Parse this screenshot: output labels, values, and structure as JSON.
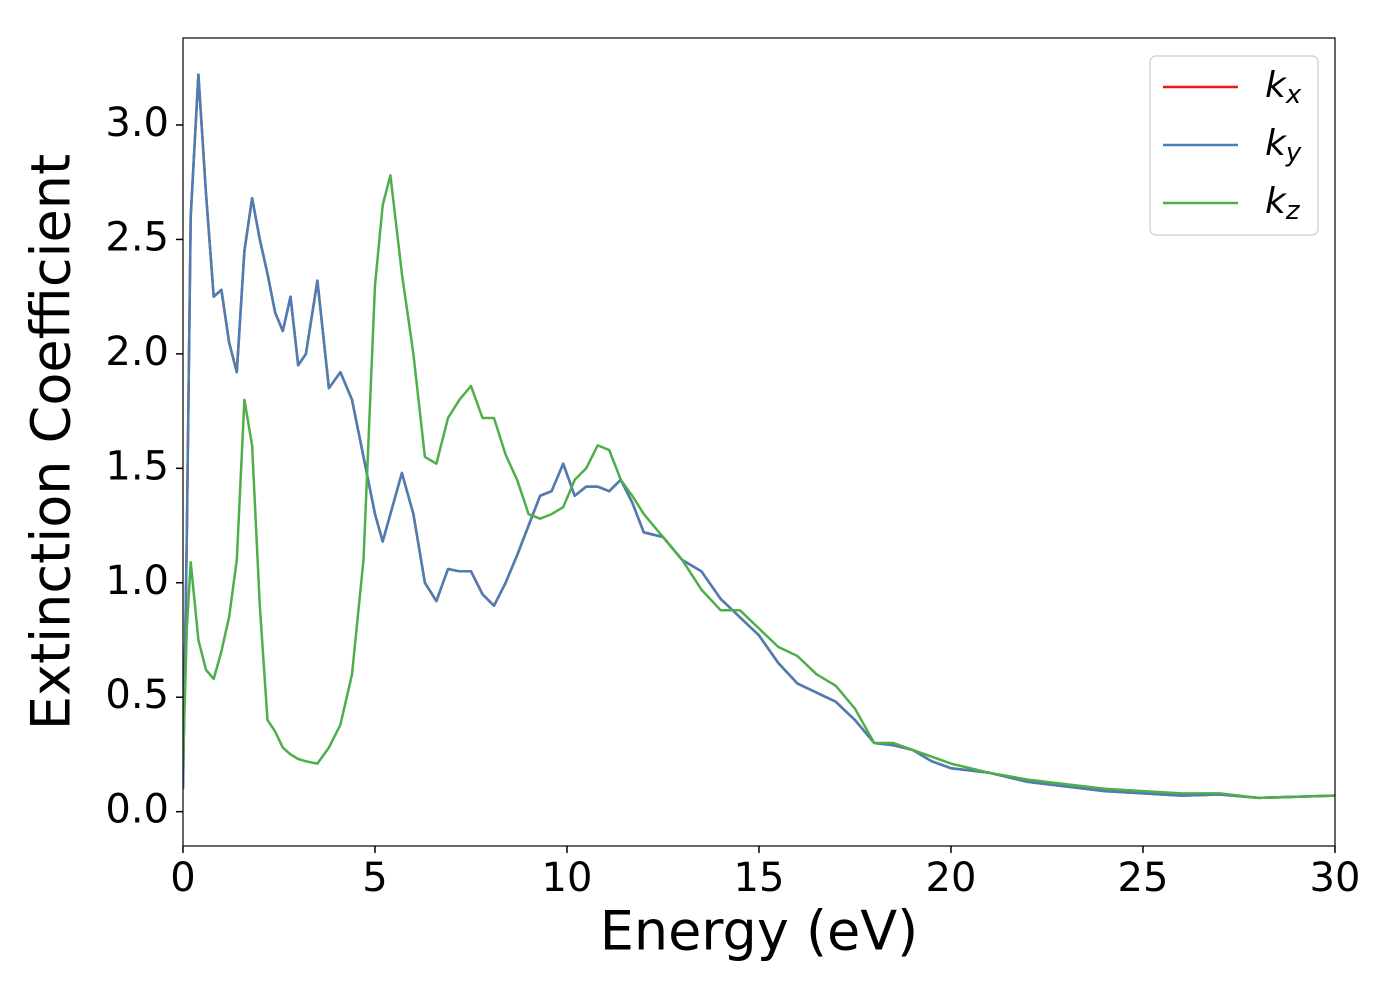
{
  "chart_data": {
    "type": "line",
    "xlabel": "Energy (eV)",
    "ylabel": "Extinction Coefficient",
    "x": [
      0,
      0.1,
      0.2,
      0.4,
      0.6,
      0.8,
      1.0,
      1.2,
      1.4,
      1.6,
      1.8,
      2.0,
      2.2,
      2.4,
      2.6,
      2.8,
      3.0,
      3.2,
      3.5,
      3.8,
      4.1,
      4.4,
      4.7,
      5.0,
      5.2,
      5.4,
      5.7,
      6.0,
      6.3,
      6.6,
      6.9,
      7.2,
      7.5,
      7.8,
      8.1,
      8.4,
      8.7,
      9.0,
      9.3,
      9.6,
      9.9,
      10.2,
      10.5,
      10.8,
      11.1,
      11.4,
      11.7,
      12,
      12.5,
      13,
      13.5,
      14,
      14.5,
      15,
      15.5,
      16,
      16.5,
      17,
      17.5,
      18,
      18.5,
      19,
      19.5,
      20,
      21,
      22,
      23,
      24,
      25,
      26,
      27,
      28,
      29,
      30
    ],
    "series": [
      {
        "name": "kx",
        "color": "#e41a1c",
        "values": [
          0.1,
          1.2,
          2.6,
          3.22,
          2.7,
          2.25,
          2.28,
          2.05,
          1.92,
          2.45,
          2.68,
          2.5,
          2.35,
          2.18,
          2.1,
          2.25,
          1.95,
          2.0,
          2.32,
          1.85,
          1.92,
          1.8,
          1.55,
          1.3,
          1.18,
          1.3,
          1.48,
          1.3,
          1.0,
          0.92,
          1.06,
          1.05,
          1.05,
          0.95,
          0.9,
          1.0,
          1.12,
          1.25,
          1.38,
          1.4,
          1.52,
          1.38,
          1.42,
          1.42,
          1.4,
          1.45,
          1.35,
          1.22,
          1.2,
          1.1,
          1.05,
          0.93,
          0.85,
          0.77,
          0.65,
          0.56,
          0.52,
          0.48,
          0.4,
          0.3,
          0.29,
          0.27,
          0.22,
          0.19,
          0.17,
          0.13,
          0.11,
          0.09,
          0.08,
          0.07,
          0.075,
          0.06,
          0.065,
          0.07
        ]
      },
      {
        "name": "ky",
        "color": "#4a7eb4",
        "values": [
          0.1,
          1.2,
          2.6,
          3.22,
          2.7,
          2.25,
          2.28,
          2.05,
          1.92,
          2.45,
          2.68,
          2.5,
          2.35,
          2.18,
          2.1,
          2.25,
          1.95,
          2.0,
          2.32,
          1.85,
          1.92,
          1.8,
          1.55,
          1.3,
          1.18,
          1.3,
          1.48,
          1.3,
          1.0,
          0.92,
          1.06,
          1.05,
          1.05,
          0.95,
          0.9,
          1.0,
          1.12,
          1.25,
          1.38,
          1.4,
          1.52,
          1.38,
          1.42,
          1.42,
          1.4,
          1.45,
          1.35,
          1.22,
          1.2,
          1.1,
          1.05,
          0.93,
          0.85,
          0.77,
          0.65,
          0.56,
          0.52,
          0.48,
          0.4,
          0.3,
          0.29,
          0.27,
          0.22,
          0.19,
          0.17,
          0.13,
          0.11,
          0.09,
          0.08,
          0.07,
          0.075,
          0.06,
          0.065,
          0.07
        ]
      },
      {
        "name": "kz",
        "color": "#4daf4a",
        "values": [
          0.2,
          0.8,
          1.09,
          0.75,
          0.62,
          0.58,
          0.7,
          0.85,
          1.1,
          1.8,
          1.6,
          0.9,
          0.4,
          0.35,
          0.28,
          0.25,
          0.23,
          0.22,
          0.21,
          0.28,
          0.38,
          0.6,
          1.1,
          2.3,
          2.65,
          2.78,
          2.35,
          2.0,
          1.55,
          1.52,
          1.72,
          1.8,
          1.86,
          1.72,
          1.72,
          1.56,
          1.45,
          1.3,
          1.28,
          1.3,
          1.33,
          1.45,
          1.5,
          1.6,
          1.58,
          1.45,
          1.38,
          1.3,
          1.2,
          1.1,
          0.97,
          0.88,
          0.88,
          0.8,
          0.72,
          0.68,
          0.6,
          0.55,
          0.45,
          0.3,
          0.3,
          0.27,
          0.24,
          0.21,
          0.17,
          0.14,
          0.12,
          0.1,
          0.09,
          0.08,
          0.08,
          0.06,
          0.065,
          0.07
        ]
      }
    ],
    "xlim": [
      0,
      30
    ],
    "xticks": [
      0,
      5,
      10,
      15,
      20,
      25,
      30
    ],
    "ylim": [
      -0.15,
      3.38
    ],
    "yticks": [
      {
        "value": 0,
        "label": "0.0"
      },
      {
        "value": 0.5,
        "label": "0.5"
      },
      {
        "value": 1,
        "label": "1.0"
      },
      {
        "value": 1.5,
        "label": "1.5"
      },
      {
        "value": 2,
        "label": "2.0"
      },
      {
        "value": 2.5,
        "label": "2.5"
      },
      {
        "value": 3,
        "label": "3.0"
      }
    ],
    "legend": "upper right",
    "grid": false
  }
}
